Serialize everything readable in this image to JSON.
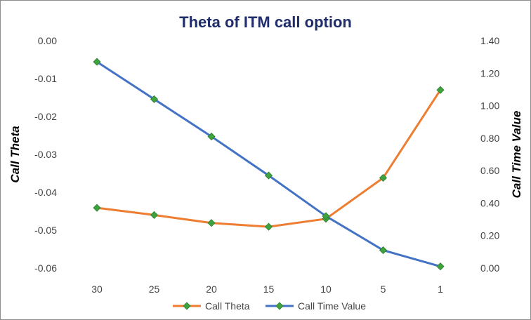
{
  "chart_data": {
    "type": "line",
    "title": "Theta of ITM call option",
    "xlabel": "",
    "x": [
      30,
      25,
      20,
      15,
      10,
      5,
      1
    ],
    "x_tick_labels": [
      "30",
      "25",
      "20",
      "15",
      "10",
      "5",
      "1"
    ],
    "y_left": {
      "label": "Call Theta",
      "lim": [
        -0.06,
        0.0
      ],
      "ticks": [
        0.0,
        -0.01,
        -0.02,
        -0.03,
        -0.04,
        -0.05,
        -0.06
      ],
      "tick_labels": [
        "0.00",
        "-0.01",
        "-0.02",
        "-0.03",
        "-0.04",
        "-0.05",
        "-0.06"
      ]
    },
    "y_right": {
      "label": "Call Time Value",
      "lim": [
        0.0,
        1.4
      ],
      "ticks": [
        1.4,
        1.2,
        1.0,
        0.8,
        0.6,
        0.4,
        0.2,
        0.0
      ],
      "tick_labels": [
        "1.40",
        "1.20",
        "1.00",
        "0.80",
        "0.60",
        "0.40",
        "0.20",
        "0.00"
      ]
    },
    "series": [
      {
        "name": "Call Theta",
        "axis": "left",
        "color": "#ed7d31",
        "values": [
          -0.0441,
          -0.046,
          -0.0481,
          -0.0491,
          -0.047,
          -0.0362,
          -0.013
        ]
      },
      {
        "name": "Call Time Value",
        "axis": "right",
        "color": "#4472c4",
        "values": [
          1.27,
          1.04,
          0.81,
          0.57,
          0.32,
          0.11,
          0.01
        ]
      }
    ],
    "marker": {
      "shape": "diamond",
      "color": "#3ea33e",
      "outline": "#2e7d2e"
    },
    "grid": false,
    "legend": "bottom",
    "frame_color": "#8c8c8c",
    "title_color": "#1f2d6b"
  }
}
